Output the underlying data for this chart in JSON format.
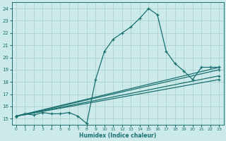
{
  "xlabel": "Humidex (Indice chaleur)",
  "xlim": [
    -0.5,
    23.5
  ],
  "ylim": [
    14.5,
    24.5
  ],
  "yticks": [
    15,
    16,
    17,
    18,
    19,
    20,
    21,
    22,
    23,
    24
  ],
  "xticks": [
    0,
    1,
    2,
    3,
    4,
    5,
    6,
    7,
    8,
    9,
    10,
    11,
    12,
    13,
    14,
    15,
    16,
    17,
    18,
    19,
    20,
    21,
    22,
    23
  ],
  "bg_color": "#cceaea",
  "grid_color": "#a8cccc",
  "line_color": "#1a7070",
  "series_main": [
    [
      0,
      15.2
    ],
    [
      1,
      15.4
    ],
    [
      2,
      15.3
    ],
    [
      3,
      15.5
    ],
    [
      4,
      15.4
    ],
    [
      5,
      15.4
    ],
    [
      6,
      15.5
    ],
    [
      7,
      15.2
    ],
    [
      8,
      14.6
    ],
    [
      9,
      18.2
    ],
    [
      10,
      20.5
    ],
    [
      11,
      21.5
    ],
    [
      12,
      22.0
    ],
    [
      13,
      22.5
    ],
    [
      14,
      23.2
    ],
    [
      15,
      24.0
    ],
    [
      16,
      23.5
    ],
    [
      17,
      20.5
    ],
    [
      18,
      19.5
    ],
    [
      19,
      18.9
    ],
    [
      20,
      18.2
    ],
    [
      21,
      19.2
    ],
    [
      22,
      19.2
    ],
    [
      23,
      19.2
    ]
  ],
  "series_line1": [
    [
      0,
      15.2
    ],
    [
      23,
      19.2
    ]
  ],
  "series_line2": [
    [
      0,
      15.2
    ],
    [
      23,
      19.0
    ]
  ],
  "series_line3": [
    [
      0,
      15.2
    ],
    [
      23,
      18.5
    ]
  ],
  "series_line4": [
    [
      0,
      15.2
    ],
    [
      23,
      18.2
    ]
  ]
}
